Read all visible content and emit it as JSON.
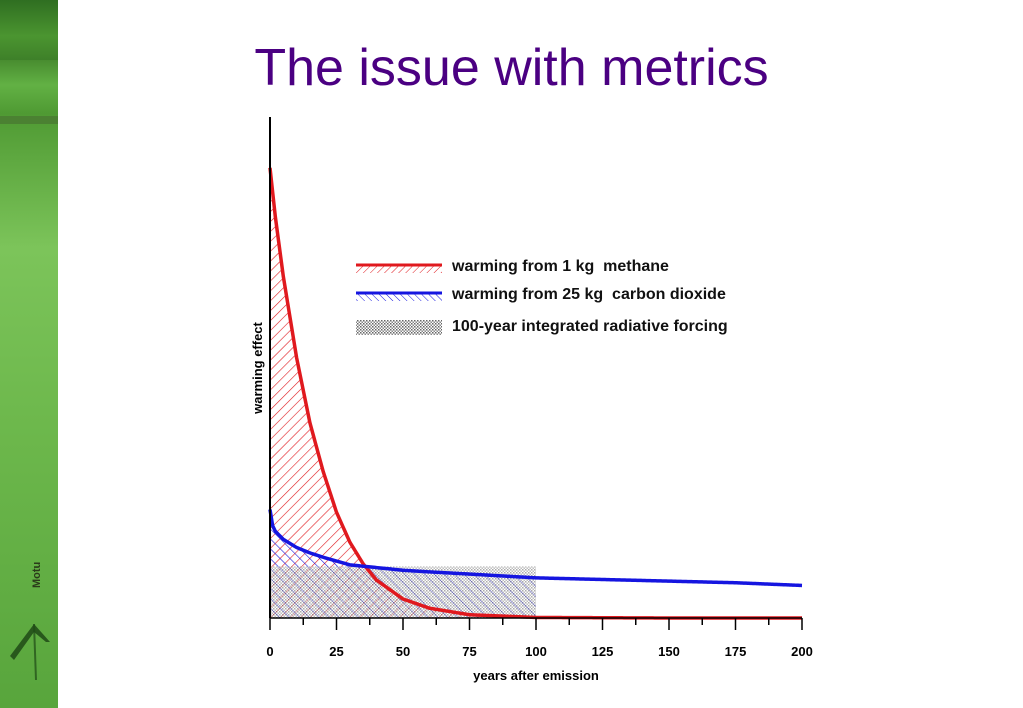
{
  "slide": {
    "title": "The issue with metrics",
    "logo_text": "Motu"
  },
  "colors": {
    "title": "#4b0082",
    "methane": "#e0191e",
    "co2": "#1515e0",
    "forcing": "#555555"
  },
  "chart_data": {
    "type": "line",
    "xlabel": "years after emission",
    "ylabel": "warming effect",
    "xlim": [
      0,
      200
    ],
    "x_ticks": [
      "0",
      "25",
      "50",
      "75",
      "100",
      "125",
      "150",
      "175",
      "200"
    ],
    "grid": false,
    "legend_position": "top-right",
    "series": [
      {
        "name": "warming from 1 kg  methane",
        "color": "#e0191e",
        "x": [
          0,
          2,
          5,
          10,
          15,
          20,
          25,
          30,
          35,
          40,
          50,
          60,
          75,
          100,
          150,
          200
        ],
        "y": [
          8.3,
          7.4,
          6.3,
          4.8,
          3.6,
          2.7,
          1.95,
          1.4,
          1.0,
          0.7,
          0.35,
          0.18,
          0.06,
          0.01,
          0.0,
          0.0
        ]
      },
      {
        "name": "warming from 25 kg  carbon dioxide",
        "color": "#1515e0",
        "x": [
          0,
          1,
          2,
          5,
          10,
          15,
          20,
          25,
          30,
          40,
          50,
          60,
          75,
          100,
          125,
          150,
          175,
          200
        ],
        "y": [
          2.0,
          1.7,
          1.6,
          1.45,
          1.3,
          1.2,
          1.12,
          1.05,
          0.98,
          0.93,
          0.88,
          0.85,
          0.81,
          0.74,
          0.71,
          0.68,
          0.65,
          0.6
        ]
      },
      {
        "name": "100-year integrated radiative forcing",
        "color": "#555555",
        "type": "area",
        "x": [
          0,
          100
        ],
        "y": [
          0.95,
          0.95
        ]
      }
    ],
    "ylim": [
      0,
      8.5
    ]
  }
}
